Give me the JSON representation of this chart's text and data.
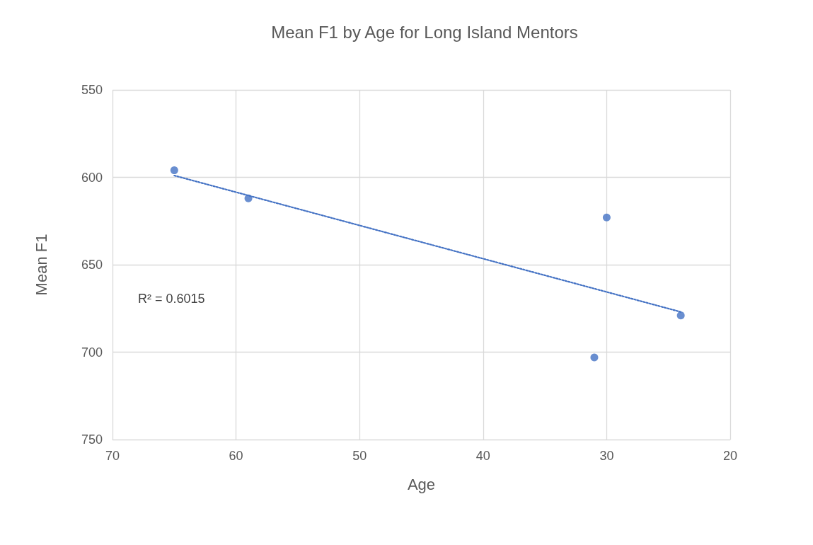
{
  "chart_data": {
    "type": "scatter",
    "title": "Mean F1 by Age for Long Island Mentors",
    "xlabel": "Age",
    "ylabel": "Mean F1",
    "annotations": [
      "R² = 0.6015"
    ],
    "series": [
      {
        "color": "#4472c4",
        "x": [
          65,
          59,
          30,
          24,
          31
        ],
        "values": [
          596,
          612,
          623,
          679,
          703
        ]
      },
      {
        "type": "line",
        "color": "#4472c4",
        "line_style": "dotted",
        "marker": "none",
        "x": [
          65,
          24
        ],
        "values": [
          599,
          677
        ]
      }
    ],
    "xlim": [
      70,
      20
    ],
    "xticks": [
      70,
      60,
      50,
      40,
      30,
      20
    ],
    "ylim": [
      750,
      550
    ],
    "yticks": [
      550,
      600,
      650,
      700,
      750
    ],
    "grid": true,
    "marker": "circle"
  }
}
